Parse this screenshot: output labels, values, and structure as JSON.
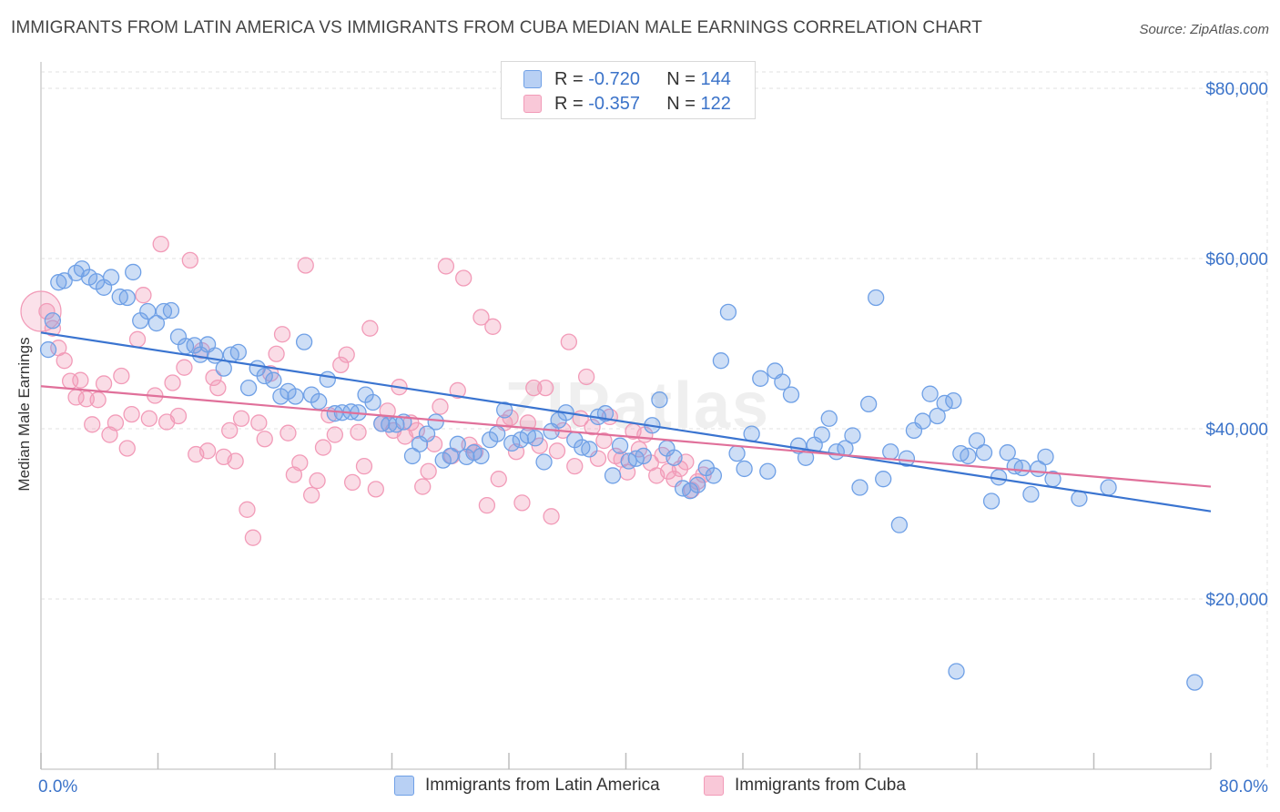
{
  "title": "IMMIGRANTS FROM LATIN AMERICA VS IMMIGRANTS FROM CUBA MEDIAN MALE EARNINGS CORRELATION CHART",
  "source": "Source: ZipAtlas.com",
  "watermark": "ZIPatlas",
  "legend": {
    "r_label": "R =",
    "n_label": "N =",
    "series": [
      {
        "r": "-0.720",
        "n": "144"
      },
      {
        "r": "-0.357",
        "n": "122"
      }
    ]
  },
  "chart_data": {
    "type": "scatter",
    "title": "IMMIGRANTS FROM LATIN AMERICA VS IMMIGRANTS FROM CUBA MEDIAN MALE EARNINGS CORRELATION CHART",
    "xlabel": "",
    "ylabel": "Median Male Earnings",
    "xlim": [
      0,
      80
    ],
    "ylim": [
      0,
      83000
    ],
    "x_tick_labels": [
      "0.0%",
      "80.0%"
    ],
    "y_ticks": [
      20000,
      40000,
      60000,
      80000
    ],
    "y_tick_labels": [
      "$20,000",
      "$40,000",
      "$60,000",
      "$80,000"
    ],
    "grid": true,
    "colors": {
      "latin": "#6fa0e6",
      "cuba": "#f29bb8",
      "latin_line": "#3a74d0",
      "cuba_line": "#e0709a"
    },
    "series": [
      {
        "name": "Immigrants from Latin America",
        "trend": {
          "x": [
            0,
            80
          ],
          "y": [
            51300,
            30300
          ]
        },
        "points": [
          [
            0.5,
            49300
          ],
          [
            0.8,
            52700
          ],
          [
            1.2,
            57200
          ],
          [
            1.6,
            57400
          ],
          [
            2.4,
            58300
          ],
          [
            2.8,
            58800
          ],
          [
            3.3,
            57800
          ],
          [
            3.8,
            57300
          ],
          [
            4.3,
            56600
          ],
          [
            4.8,
            57800
          ],
          [
            5.4,
            55500
          ],
          [
            5.9,
            55400
          ],
          [
            6.3,
            58400
          ],
          [
            6.8,
            52700
          ],
          [
            7.3,
            53800
          ],
          [
            7.9,
            52400
          ],
          [
            8.4,
            53800
          ],
          [
            8.9,
            53900
          ],
          [
            9.4,
            50800
          ],
          [
            9.9,
            49700
          ],
          [
            10.5,
            49800
          ],
          [
            10.9,
            48700
          ],
          [
            11.4,
            49900
          ],
          [
            11.9,
            48600
          ],
          [
            12.5,
            47100
          ],
          [
            13.0,
            48700
          ],
          [
            13.5,
            49000
          ],
          [
            14.2,
            44800
          ],
          [
            14.8,
            47100
          ],
          [
            15.3,
            46200
          ],
          [
            15.9,
            45700
          ],
          [
            16.4,
            43800
          ],
          [
            16.9,
            44400
          ],
          [
            17.4,
            43800
          ],
          [
            18.0,
            50200
          ],
          [
            18.5,
            44000
          ],
          [
            19.0,
            43200
          ],
          [
            19.6,
            45800
          ],
          [
            20.1,
            41800
          ],
          [
            20.6,
            41900
          ],
          [
            21.2,
            42000
          ],
          [
            21.7,
            41900
          ],
          [
            22.2,
            44000
          ],
          [
            22.7,
            43100
          ],
          [
            23.3,
            40600
          ],
          [
            23.8,
            40500
          ],
          [
            24.3,
            40500
          ],
          [
            24.8,
            40800
          ],
          [
            25.4,
            36800
          ],
          [
            25.9,
            38200
          ],
          [
            26.4,
            39400
          ],
          [
            27.0,
            40800
          ],
          [
            27.5,
            36300
          ],
          [
            28.0,
            36800
          ],
          [
            28.5,
            38200
          ],
          [
            29.1,
            36700
          ],
          [
            29.6,
            37200
          ],
          [
            30.1,
            36800
          ],
          [
            30.7,
            38700
          ],
          [
            31.2,
            39400
          ],
          [
            31.7,
            42200
          ],
          [
            32.2,
            38300
          ],
          [
            32.8,
            38700
          ],
          [
            33.3,
            39200
          ],
          [
            33.8,
            38900
          ],
          [
            34.4,
            36100
          ],
          [
            34.9,
            39700
          ],
          [
            35.4,
            41000
          ],
          [
            35.9,
            41900
          ],
          [
            36.5,
            38700
          ],
          [
            37.0,
            37800
          ],
          [
            37.5,
            37600
          ],
          [
            38.1,
            41400
          ],
          [
            38.6,
            41800
          ],
          [
            39.1,
            34500
          ],
          [
            39.6,
            38000
          ],
          [
            40.2,
            36200
          ],
          [
            40.7,
            36500
          ],
          [
            41.2,
            36800
          ],
          [
            41.8,
            40400
          ],
          [
            42.3,
            43400
          ],
          [
            42.8,
            37700
          ],
          [
            43.3,
            36600
          ],
          [
            43.9,
            33000
          ],
          [
            44.4,
            32700
          ],
          [
            44.9,
            33400
          ],
          [
            45.5,
            35400
          ],
          [
            46.0,
            34500
          ],
          [
            46.5,
            48000
          ],
          [
            47.0,
            53700
          ],
          [
            47.6,
            37100
          ],
          [
            48.1,
            35300
          ],
          [
            48.6,
            39400
          ],
          [
            49.2,
            45900
          ],
          [
            49.7,
            35000
          ],
          [
            50.2,
            46800
          ],
          [
            50.7,
            45500
          ],
          [
            51.3,
            44000
          ],
          [
            51.8,
            38000
          ],
          [
            52.3,
            36600
          ],
          [
            52.9,
            38100
          ],
          [
            53.4,
            39300
          ],
          [
            53.9,
            41200
          ],
          [
            54.4,
            37300
          ],
          [
            55.0,
            37700
          ],
          [
            55.5,
            39200
          ],
          [
            56.0,
            33100
          ],
          [
            56.6,
            42900
          ],
          [
            57.1,
            55400
          ],
          [
            57.6,
            34100
          ],
          [
            58.1,
            37300
          ],
          [
            58.7,
            28700
          ],
          [
            59.2,
            36500
          ],
          [
            59.7,
            39800
          ],
          [
            60.3,
            40900
          ],
          [
            60.8,
            44100
          ],
          [
            61.3,
            41500
          ],
          [
            61.8,
            43000
          ],
          [
            62.4,
            43300
          ],
          [
            62.9,
            37100
          ],
          [
            63.4,
            36800
          ],
          [
            64.0,
            38600
          ],
          [
            64.5,
            37200
          ],
          [
            65.0,
            31500
          ],
          [
            65.5,
            34300
          ],
          [
            66.1,
            37200
          ],
          [
            66.6,
            35600
          ],
          [
            67.1,
            35400
          ],
          [
            67.7,
            32300
          ],
          [
            68.2,
            35300
          ],
          [
            68.7,
            36700
          ],
          [
            69.2,
            34100
          ],
          [
            71.0,
            31800
          ],
          [
            73.0,
            33100
          ],
          [
            62.6,
            11500
          ],
          [
            78.9,
            10200
          ]
        ]
      },
      {
        "name": "Immigrants from Cuba",
        "trend": {
          "x": [
            0,
            80
          ],
          "y": [
            45000,
            33200
          ]
        },
        "points": [
          [
            0.4,
            53800
          ],
          [
            0.8,
            51800
          ],
          [
            1.2,
            49500
          ],
          [
            1.6,
            48000
          ],
          [
            2.0,
            45600
          ],
          [
            2.4,
            43700
          ],
          [
            2.7,
            45700
          ],
          [
            3.1,
            43500
          ],
          [
            3.5,
            40500
          ],
          [
            3.9,
            43400
          ],
          [
            4.3,
            45300
          ],
          [
            4.7,
            39300
          ],
          [
            5.1,
            40700
          ],
          [
            5.5,
            46200
          ],
          [
            5.9,
            37700
          ],
          [
            6.2,
            41700
          ],
          [
            6.6,
            50500
          ],
          [
            7.0,
            55700
          ],
          [
            7.4,
            41200
          ],
          [
            7.8,
            43900
          ],
          [
            8.2,
            61700
          ],
          [
            8.6,
            40800
          ],
          [
            9.0,
            45400
          ],
          [
            9.4,
            41500
          ],
          [
            9.8,
            47200
          ],
          [
            10.2,
            59800
          ],
          [
            10.6,
            37000
          ],
          [
            11.0,
            49200
          ],
          [
            11.4,
            37400
          ],
          [
            11.8,
            46000
          ],
          [
            12.1,
            44800
          ],
          [
            12.5,
            36700
          ],
          [
            12.9,
            39800
          ],
          [
            13.3,
            36200
          ],
          [
            13.7,
            41200
          ],
          [
            14.1,
            30500
          ],
          [
            14.5,
            27200
          ],
          [
            14.9,
            40700
          ],
          [
            15.3,
            38800
          ],
          [
            15.7,
            46500
          ],
          [
            16.1,
            48800
          ],
          [
            16.5,
            51100
          ],
          [
            16.9,
            39500
          ],
          [
            17.3,
            34600
          ],
          [
            17.7,
            36000
          ],
          [
            18.1,
            59200
          ],
          [
            18.5,
            32200
          ],
          [
            18.9,
            33900
          ],
          [
            19.3,
            37800
          ],
          [
            19.7,
            41600
          ],
          [
            20.1,
            39300
          ],
          [
            20.5,
            47500
          ],
          [
            20.9,
            48700
          ],
          [
            21.3,
            33700
          ],
          [
            21.7,
            39600
          ],
          [
            22.1,
            35600
          ],
          [
            22.5,
            51800
          ],
          [
            22.9,
            32900
          ],
          [
            23.3,
            40600
          ],
          [
            23.7,
            42100
          ],
          [
            24.1,
            39800
          ],
          [
            24.5,
            44900
          ],
          [
            24.9,
            39100
          ],
          [
            25.3,
            40700
          ],
          [
            25.7,
            39800
          ],
          [
            26.1,
            33200
          ],
          [
            26.5,
            35000
          ],
          [
            26.9,
            38200
          ],
          [
            27.3,
            42600
          ],
          [
            27.7,
            59100
          ],
          [
            28.1,
            36800
          ],
          [
            28.5,
            44500
          ],
          [
            28.9,
            57700
          ],
          [
            29.3,
            38100
          ],
          [
            29.7,
            37300
          ],
          [
            30.1,
            53100
          ],
          [
            30.5,
            31000
          ],
          [
            30.9,
            52000
          ],
          [
            31.3,
            34100
          ],
          [
            31.7,
            40700
          ],
          [
            32.1,
            41300
          ],
          [
            32.5,
            37300
          ],
          [
            32.9,
            31300
          ],
          [
            33.3,
            40700
          ],
          [
            33.7,
            44800
          ],
          [
            34.1,
            38000
          ],
          [
            34.5,
            44800
          ],
          [
            34.9,
            29700
          ],
          [
            35.3,
            37400
          ],
          [
            35.7,
            39800
          ],
          [
            36.1,
            50200
          ],
          [
            36.5,
            35600
          ],
          [
            36.9,
            41200
          ],
          [
            37.3,
            46100
          ],
          [
            37.7,
            40200
          ],
          [
            38.1,
            36500
          ],
          [
            38.5,
            38600
          ],
          [
            38.9,
            41400
          ],
          [
            39.3,
            36800
          ],
          [
            39.7,
            36400
          ],
          [
            40.1,
            34900
          ],
          [
            40.5,
            39700
          ],
          [
            40.9,
            37600
          ],
          [
            41.3,
            39300
          ],
          [
            41.7,
            36000
          ],
          [
            42.1,
            34500
          ],
          [
            42.5,
            36900
          ],
          [
            42.9,
            35000
          ],
          [
            43.3,
            34100
          ],
          [
            43.7,
            35300
          ],
          [
            44.1,
            36100
          ],
          [
            44.5,
            32800
          ],
          [
            44.9,
            33800
          ],
          [
            45.3,
            34600
          ]
        ]
      }
    ]
  },
  "bottom_legend": [
    "Immigrants from Latin America",
    "Immigrants from Cuba"
  ]
}
